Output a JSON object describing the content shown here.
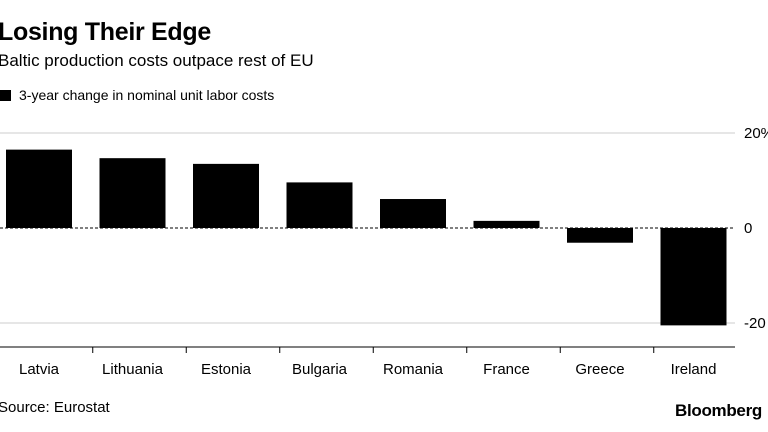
{
  "chart_data": {
    "type": "bar",
    "title": "Losing Their Edge",
    "subtitle": "Baltic production costs outpace rest of EU",
    "legend": [
      "3-year change in nominal unit labor costs"
    ],
    "categories": [
      "Latvia",
      "Lithuania",
      "Estonia",
      "Bulgaria",
      "Romania",
      "France",
      "Greece",
      "Ireland"
    ],
    "values": [
      16.5,
      14.7,
      13.5,
      9.6,
      6.1,
      1.5,
      -3.1,
      -20.5
    ],
    "yticks": [
      20,
      0,
      -20
    ],
    "ytick_labels": [
      "20%",
      "0",
      "-20"
    ],
    "ylim": [
      -20.5,
      20
    ],
    "xlabel": "",
    "ylabel": "",
    "color": "#000000",
    "source": "Source: Eurostat",
    "brand": "Bloomberg"
  }
}
